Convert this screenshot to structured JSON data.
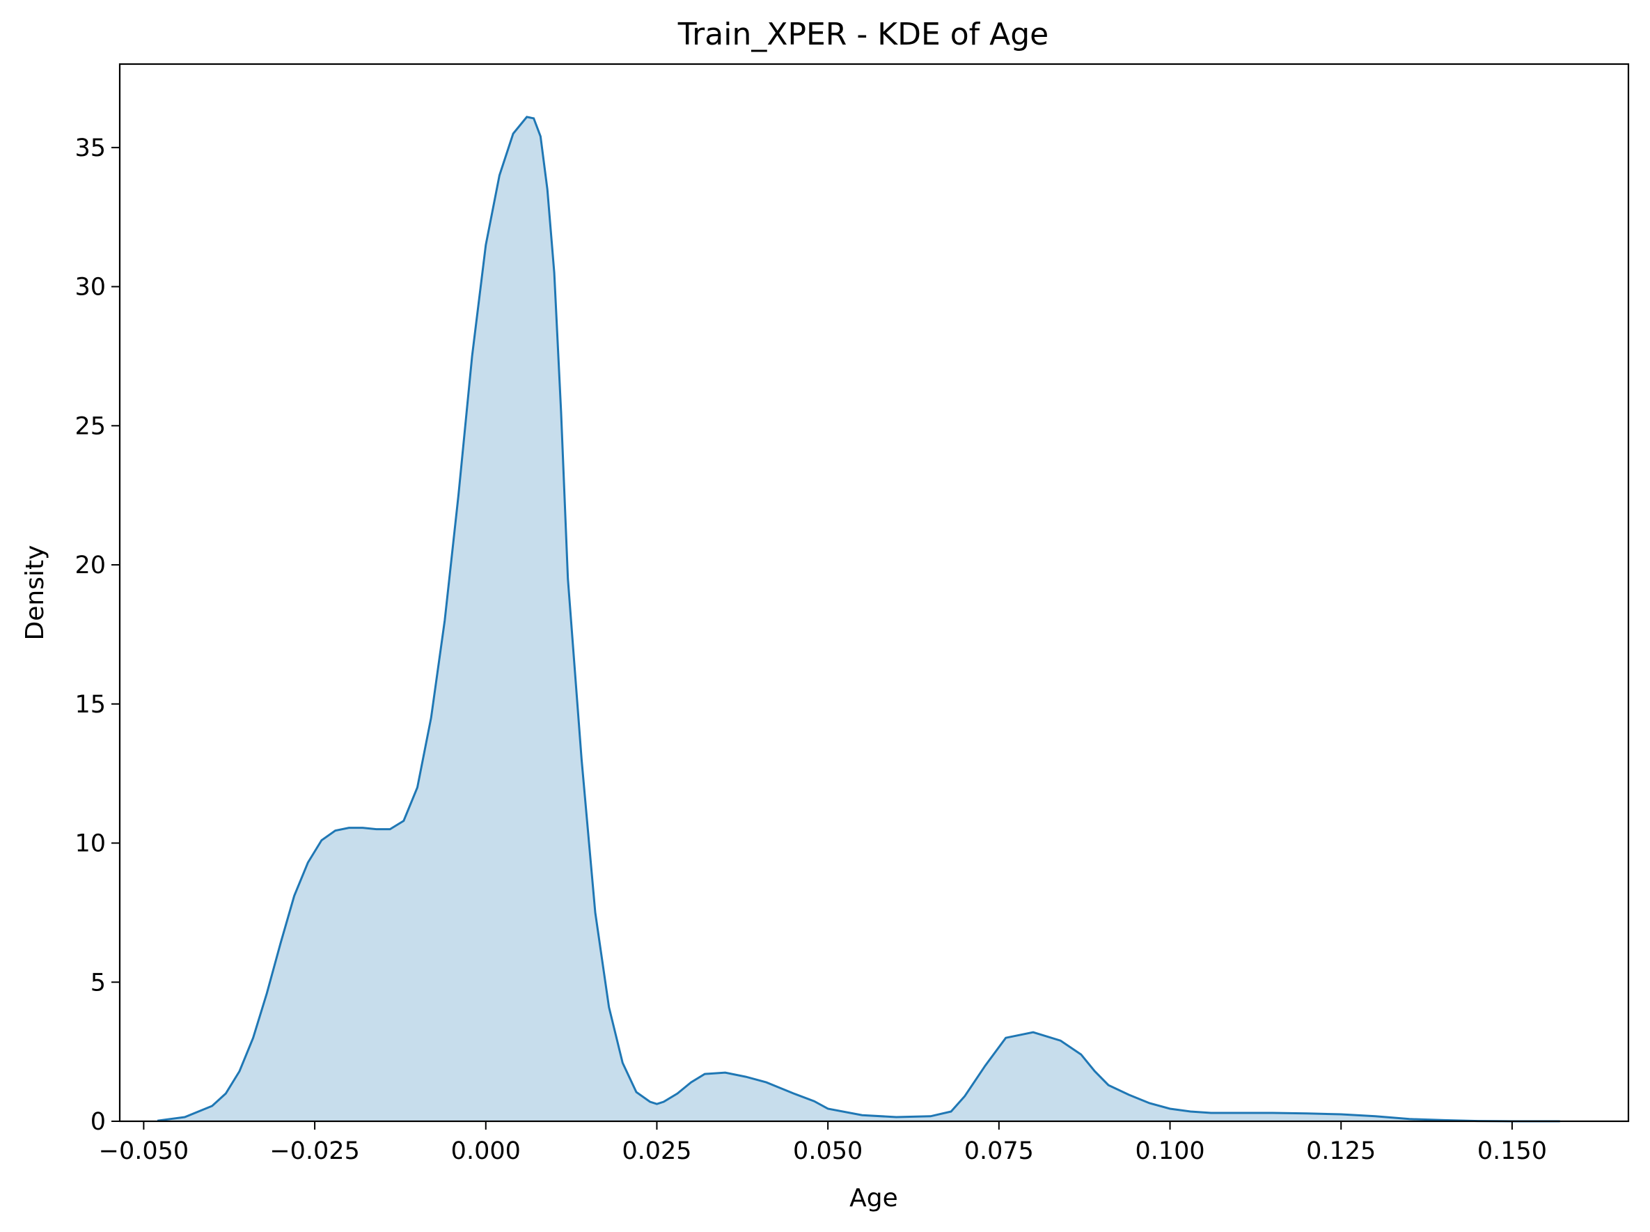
{
  "chart_data": {
    "type": "area",
    "title": "Train_XPER - KDE of Age",
    "xlabel": "Age",
    "ylabel": "Density",
    "xlim": [
      -0.0535,
      0.167
    ],
    "ylim": [
      0,
      38
    ],
    "xticks": [
      -0.05,
      -0.025,
      0.0,
      0.025,
      0.05,
      0.075,
      0.1,
      0.125,
      0.15
    ],
    "xtick_labels": [
      "−0.050",
      "−0.025",
      "0.000",
      "0.025",
      "0.050",
      "0.075",
      "0.100",
      "0.125",
      "0.150"
    ],
    "yticks": [
      0,
      5,
      10,
      15,
      20,
      25,
      30,
      35
    ],
    "ytick_labels": [
      "0",
      "5",
      "10",
      "15",
      "20",
      "25",
      "30",
      "35"
    ],
    "grid": false,
    "colors": {
      "line": "#1f77b4",
      "fill": "#1f77b4",
      "fill_alpha": 0.25
    },
    "series": [
      {
        "x": [
          -0.048,
          -0.044,
          -0.04,
          -0.038,
          -0.036,
          -0.034,
          -0.032,
          -0.03,
          -0.028,
          -0.026,
          -0.024,
          -0.022,
          -0.02,
          -0.018,
          -0.016,
          -0.014,
          -0.012,
          -0.01,
          -0.008,
          -0.006,
          -0.004,
          -0.002,
          0.0,
          0.002,
          0.004,
          0.006,
          0.007,
          0.008,
          0.009,
          0.01,
          0.011,
          0.012,
          0.014,
          0.016,
          0.018,
          0.02,
          0.022,
          0.024,
          0.025,
          0.026,
          0.028,
          0.03,
          0.032,
          0.035,
          0.038,
          0.041,
          0.043,
          0.045,
          0.048,
          0.05,
          0.055,
          0.06,
          0.065,
          0.068,
          0.07,
          0.073,
          0.076,
          0.08,
          0.084,
          0.087,
          0.089,
          0.091,
          0.094,
          0.097,
          0.1,
          0.103,
          0.106,
          0.11,
          0.115,
          0.12,
          0.125,
          0.13,
          0.135,
          0.14,
          0.145,
          0.15,
          0.157
        ],
        "y": [
          0.02,
          0.15,
          0.55,
          1.0,
          1.8,
          3.0,
          4.6,
          6.4,
          8.1,
          9.3,
          10.1,
          10.45,
          10.55,
          10.55,
          10.5,
          10.5,
          10.8,
          12.0,
          14.5,
          18.0,
          22.5,
          27.5,
          31.5,
          34.0,
          35.5,
          36.1,
          36.05,
          35.4,
          33.5,
          30.5,
          25.5,
          19.5,
          13.0,
          7.5,
          4.1,
          2.1,
          1.05,
          0.7,
          0.62,
          0.7,
          1.0,
          1.4,
          1.7,
          1.75,
          1.6,
          1.4,
          1.2,
          1.0,
          0.72,
          0.45,
          0.22,
          0.15,
          0.18,
          0.35,
          0.9,
          2.0,
          3.0,
          3.2,
          2.9,
          2.4,
          1.8,
          1.3,
          0.95,
          0.65,
          0.45,
          0.35,
          0.3,
          0.3,
          0.3,
          0.28,
          0.25,
          0.18,
          0.08,
          0.04,
          0.01,
          0.0,
          0.0
        ]
      }
    ]
  }
}
